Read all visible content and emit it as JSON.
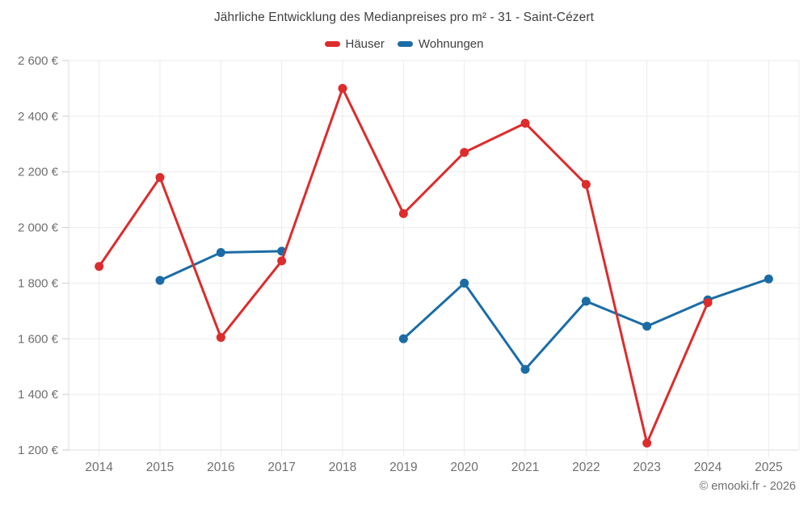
{
  "header": {
    "title": "Jährliche Entwicklung des Medianpreises pro m² - 31 - Saint-Cézert"
  },
  "footer": {
    "credit": "© emooki.fr - 2026"
  },
  "chart_data": {
    "type": "line",
    "title": "Jährliche Entwicklung des Medianpreises pro m² - 31 - Saint-Cézert",
    "categories": [
      "2014",
      "2015",
      "2016",
      "2017",
      "2018",
      "2019",
      "2020",
      "2021",
      "2022",
      "2023",
      "2024",
      "2025"
    ],
    "series": [
      {
        "name": "Häuser",
        "color": "#dd2c2c",
        "values": [
          1860,
          2180,
          1605,
          1880,
          2500,
          2050,
          2270,
          2375,
          2155,
          1225,
          1730,
          null
        ]
      },
      {
        "name": "Wohnungen",
        "color": "#1b6ca6",
        "values": [
          null,
          1810,
          1910,
          1915,
          null,
          1600,
          1800,
          1490,
          1735,
          1645,
          1740,
          1815
        ]
      }
    ],
    "xlabel": "",
    "ylabel": "",
    "ylim": [
      1200,
      2600
    ],
    "y_ticks": [
      {
        "value": 1200,
        "label": "1 200 €"
      },
      {
        "value": 1400,
        "label": "1 400 €"
      },
      {
        "value": 1600,
        "label": "1 600 €"
      },
      {
        "value": 1800,
        "label": "1 800 €"
      },
      {
        "value": 2000,
        "label": "2 000 €"
      },
      {
        "value": 2200,
        "label": "2 200 €"
      },
      {
        "value": 2400,
        "label": "2 400 €"
      },
      {
        "value": 2600,
        "label": "2 600 €"
      }
    ],
    "grid": true,
    "legend_position": "top"
  },
  "colors": {
    "grid_line": "#ebebeb",
    "axis_line": "#dedede",
    "tick_mark": "#cccccc",
    "axis_label": "#6f6f6f",
    "title_text": "#3f3f3f"
  }
}
